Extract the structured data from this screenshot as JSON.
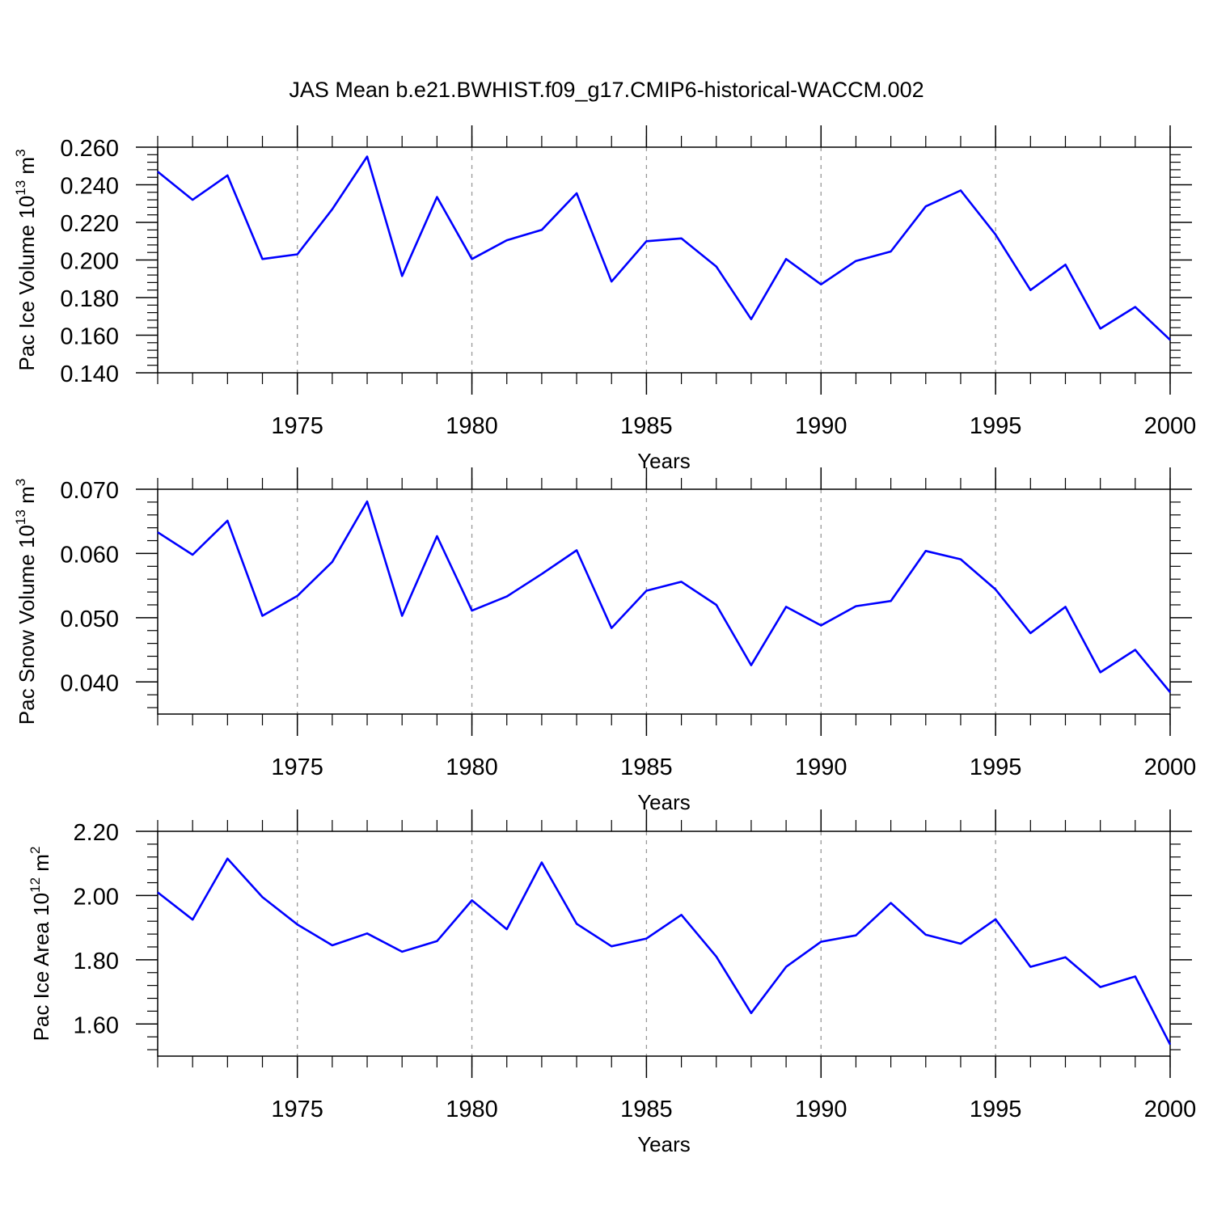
{
  "title": "JAS Mean b.e21.BWHIST.f09_g17.CMIP6-historical-WACCM.002",
  "colors": {
    "line": "#0000ff",
    "axis": "#000000",
    "grid": "#999999"
  },
  "chart_data": [
    {
      "type": "line",
      "ylabel": {
        "main": "Pac Ice Volume 10",
        "exp": "13",
        "unit": " m",
        "unit_exp": "3"
      },
      "xlabel": "Years",
      "xlim": [
        1971,
        2000
      ],
      "ylim": [
        0.14,
        0.26
      ],
      "yticks": [
        0.14,
        0.16,
        0.18,
        0.2,
        0.22,
        0.24,
        0.26
      ],
      "ytick_labels": [
        "0.140",
        "0.160",
        "0.180",
        "0.200",
        "0.220",
        "0.240",
        "0.260"
      ],
      "xticks": [
        1975,
        1980,
        1985,
        1990,
        1995,
        2000
      ],
      "xtick_labels": [
        "1975",
        "1980",
        "1985",
        "1990",
        "1995",
        "2000"
      ],
      "grid": "vertical dashed at major x ticks",
      "x": [
        1971,
        1972,
        1973,
        1974,
        1975,
        1976,
        1977,
        1978,
        1979,
        1980,
        1981,
        1982,
        1983,
        1984,
        1985,
        1986,
        1987,
        1988,
        1989,
        1990,
        1991,
        1992,
        1993,
        1994,
        1995,
        1996,
        1997,
        1998,
        1999,
        2000
      ],
      "y": [
        0.247,
        0.232,
        0.245,
        0.2005,
        0.203,
        0.227,
        0.255,
        0.1915,
        0.2335,
        0.2005,
        0.2105,
        0.216,
        0.2355,
        0.1885,
        0.21,
        0.2115,
        0.1965,
        0.1685,
        0.2005,
        0.187,
        0.1995,
        0.2045,
        0.2285,
        0.237,
        0.2135,
        0.184,
        0.1975,
        0.1635,
        0.175,
        0.1575
      ]
    },
    {
      "type": "line",
      "ylabel": {
        "main": "Pac Snow Volume 10",
        "exp": "13",
        "unit": " m",
        "unit_exp": "3"
      },
      "xlabel": "Years",
      "xlim": [
        1971,
        2000
      ],
      "ylim": [
        0.035,
        0.07
      ],
      "yticks": [
        0.04,
        0.05,
        0.06,
        0.07
      ],
      "ytick_labels": [
        "0.040",
        "0.050",
        "0.060",
        "0.070"
      ],
      "xticks": [
        1975,
        1980,
        1985,
        1990,
        1995,
        2000
      ],
      "xtick_labels": [
        "1975",
        "1980",
        "1985",
        "1990",
        "1995",
        "2000"
      ],
      "grid": "vertical dashed at major x ticks",
      "x": [
        1971,
        1972,
        1973,
        1974,
        1975,
        1976,
        1977,
        1978,
        1979,
        1980,
        1981,
        1982,
        1983,
        1984,
        1985,
        1986,
        1987,
        1988,
        1989,
        1990,
        1991,
        1992,
        1993,
        1994,
        1995,
        1996,
        1997,
        1998,
        1999,
        2000
      ],
      "y": [
        0.0633,
        0.0598,
        0.0651,
        0.0503,
        0.0534,
        0.0587,
        0.0681,
        0.0503,
        0.0627,
        0.0511,
        0.0533,
        0.0568,
        0.0605,
        0.0484,
        0.0542,
        0.0556,
        0.052,
        0.0426,
        0.0517,
        0.0488,
        0.0518,
        0.0526,
        0.0604,
        0.0591,
        0.0544,
        0.0476,
        0.0517,
        0.0415,
        0.045,
        0.0384
      ]
    },
    {
      "type": "line",
      "ylabel": {
        "main": "Pac Ice Area 10",
        "exp": "12",
        "unit": " m",
        "unit_exp": "2"
      },
      "xlabel": "Years",
      "xlim": [
        1971,
        2000
      ],
      "ylim": [
        1.5,
        2.2
      ],
      "yticks": [
        1.6,
        1.8,
        2.0,
        2.2
      ],
      "ytick_labels": [
        "1.60",
        "1.80",
        "2.00",
        "2.20"
      ],
      "xticks": [
        1975,
        1980,
        1985,
        1990,
        1995,
        2000
      ],
      "xtick_labels": [
        "1975",
        "1980",
        "1985",
        "1990",
        "1995",
        "2000"
      ],
      "grid": "vertical dashed at major x ticks",
      "x": [
        1971,
        1972,
        1973,
        1974,
        1975,
        1976,
        1977,
        1978,
        1979,
        1980,
        1981,
        1982,
        1983,
        1984,
        1985,
        1986,
        1987,
        1988,
        1989,
        1990,
        1991,
        1992,
        1993,
        1994,
        1995,
        1996,
        1997,
        1998,
        1999,
        2000
      ],
      "y": [
        2.01,
        1.925,
        2.115,
        1.995,
        1.91,
        1.845,
        1.882,
        1.825,
        1.858,
        1.985,
        1.895,
        2.103,
        1.912,
        1.842,
        1.866,
        1.94,
        1.81,
        1.634,
        1.778,
        1.856,
        1.876,
        1.977,
        1.878,
        1.85,
        1.926,
        1.778,
        1.808,
        1.715,
        1.748,
        1.536
      ]
    }
  ]
}
